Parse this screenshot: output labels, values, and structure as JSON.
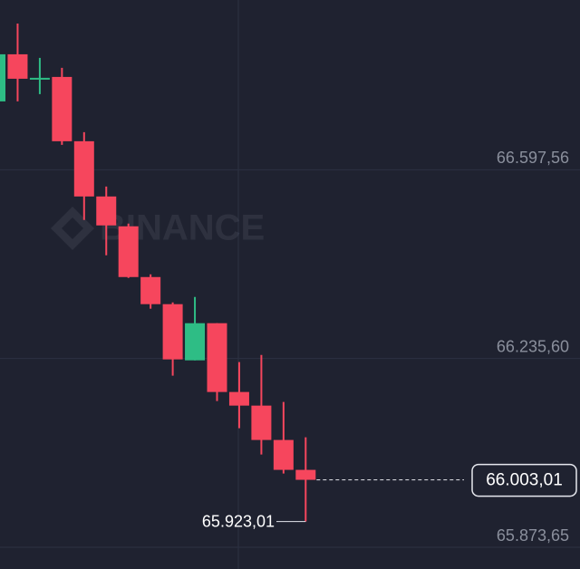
{
  "chart_data": {
    "type": "candlestick",
    "watermark": "BINANCE",
    "ylim": [
      65832,
      66923
    ],
    "yticks": [
      {
        "value": 66597.56,
        "label": "66.597,56"
      },
      {
        "value": 66235.6,
        "label": "66.235,60"
      },
      {
        "value": 65873.65,
        "label": "65.873,65"
      }
    ],
    "grid": true,
    "up_color": "#2ebd85",
    "down_color": "#f6465d",
    "open": [
      66728.6,
      66818.9,
      66770.3,
      66775.5,
      66652.2,
      66546.3,
      66489.1,
      66391.8,
      66339.8,
      66232.1,
      66303.3,
      66171.4,
      66145.3,
      66079.4,
      66022.1
    ],
    "high": [
      66823.0,
      66877.9,
      66812.0,
      66792.9,
      66669.6,
      66565.4,
      66494.3,
      66397.0,
      66343.2,
      66353.6,
      66303.3,
      66228.7,
      66242.5,
      66152.3,
      66084.6
    ],
    "low": [
      66728.6,
      66728.6,
      66742.5,
      66645.3,
      66501.2,
      66433.5,
      66390.1,
      66331.1,
      66202.6,
      66232.1,
      66154.0,
      66101.9,
      66051.6,
      66015.1,
      65923.01
    ],
    "close": [
      66818.9,
      66772.0,
      66773.8,
      66652.2,
      66546.3,
      66490.8,
      66391.8,
      66339.8,
      66233.9,
      66303.3,
      66171.4,
      66145.3,
      66079.4,
      66022.1,
      66003.01
    ],
    "last_price": {
      "value": 66003.01,
      "label": "66.003,01"
    },
    "low_marker": {
      "value": 65923.01,
      "label": "65.923,01"
    }
  }
}
